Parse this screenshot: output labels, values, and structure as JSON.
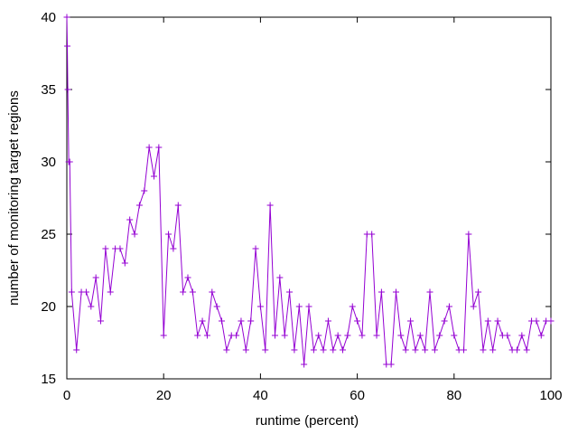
{
  "chart_data": {
    "type": "line",
    "xlabel": "runtime (percent)",
    "ylabel": "number of monitoring target regions",
    "xlim": [
      0,
      100
    ],
    "ylim": [
      15,
      40
    ],
    "x_ticks": [
      0,
      20,
      40,
      60,
      80,
      100
    ],
    "y_ticks": [
      15,
      20,
      25,
      30,
      35,
      40
    ],
    "x_tick_labels": [
      "0",
      "20",
      "40",
      "60",
      "80",
      "100"
    ],
    "y_tick_labels": [
      "15",
      "20",
      "25",
      "30",
      "35",
      "40"
    ],
    "grid": false,
    "legend": "none",
    "marker": "plus",
    "series": [
      {
        "color": "#9400d3",
        "x": [
          0,
          0.1,
          0.2,
          0.4,
          0.6,
          1,
          2,
          3,
          4,
          5,
          6,
          7,
          8,
          9,
          10,
          11,
          12,
          13,
          14,
          15,
          16,
          17,
          18,
          19,
          20,
          21,
          22,
          23,
          24,
          25,
          26,
          27,
          28,
          29,
          30,
          31,
          32,
          33,
          34,
          35,
          36,
          37,
          38,
          39,
          40,
          41,
          42,
          43,
          44,
          45,
          46,
          47,
          48,
          49,
          50,
          51,
          52,
          53,
          54,
          55,
          56,
          57,
          58,
          59,
          60,
          61,
          62,
          63,
          64,
          65,
          66,
          67,
          68,
          69,
          70,
          71,
          72,
          73,
          74,
          75,
          76,
          77,
          78,
          79,
          80,
          81,
          82,
          83,
          84,
          85,
          86,
          87,
          88,
          89,
          90,
          91,
          92,
          93,
          94,
          95,
          96,
          97,
          98,
          99,
          100
        ],
        "y": [
          40,
          38,
          35,
          30,
          30,
          21,
          17,
          21,
          21,
          20,
          22,
          19,
          24,
          21,
          24,
          24,
          23,
          26,
          25,
          27,
          28,
          31,
          29,
          31,
          18,
          25,
          24,
          27,
          21,
          22,
          21,
          18,
          19,
          18,
          21,
          20,
          19,
          17,
          18,
          18,
          19,
          17,
          19,
          24,
          20,
          17,
          27,
          18,
          22,
          18,
          21,
          17,
          20,
          16,
          20,
          17,
          18,
          17,
          19,
          17,
          18,
          17,
          18,
          20,
          19,
          18,
          25,
          25,
          18,
          21,
          16,
          16,
          21,
          18,
          17,
          19,
          17,
          18,
          17,
          21,
          17,
          18,
          19,
          20,
          18,
          17,
          17,
          25,
          20,
          21,
          17,
          19,
          17,
          19,
          18,
          18,
          17,
          17,
          18,
          17,
          19,
          19,
          18,
          19,
          19
        ]
      }
    ]
  }
}
